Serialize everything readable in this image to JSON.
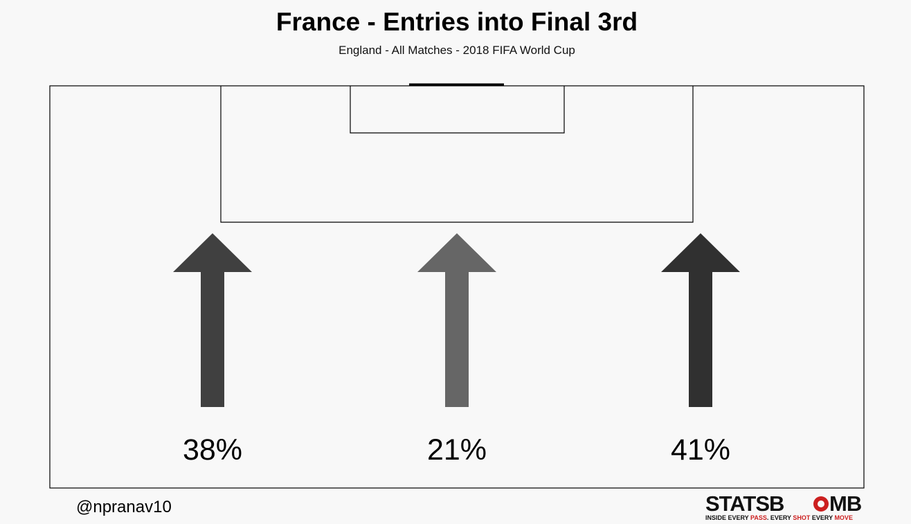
{
  "chart_data": {
    "type": "bar",
    "title": "France - Entries into Final 3rd",
    "subtitle": "England - All Matches - 2018 FIFA World Cup",
    "categories": [
      "Left",
      "Centre",
      "Right"
    ],
    "values": [
      38,
      21,
      41
    ],
    "labels": [
      "38%",
      "21%",
      "41%"
    ],
    "arrow_colors": [
      "#404040",
      "#666666",
      "#303030"
    ],
    "grid": false
  },
  "credit": "@npranav10",
  "logo": {
    "main_left": "STATSB",
    "main_right": "MB",
    "tag_1": "INSIDE EVERY ",
    "tag_2": "PASS",
    "tag_3": ". EVERY ",
    "tag_4": "SHOT",
    "tag_5": " EVERY ",
    "tag_6": "MOVE",
    "colors": {
      "dark": "#111111",
      "red": "#cc1f1f"
    }
  }
}
